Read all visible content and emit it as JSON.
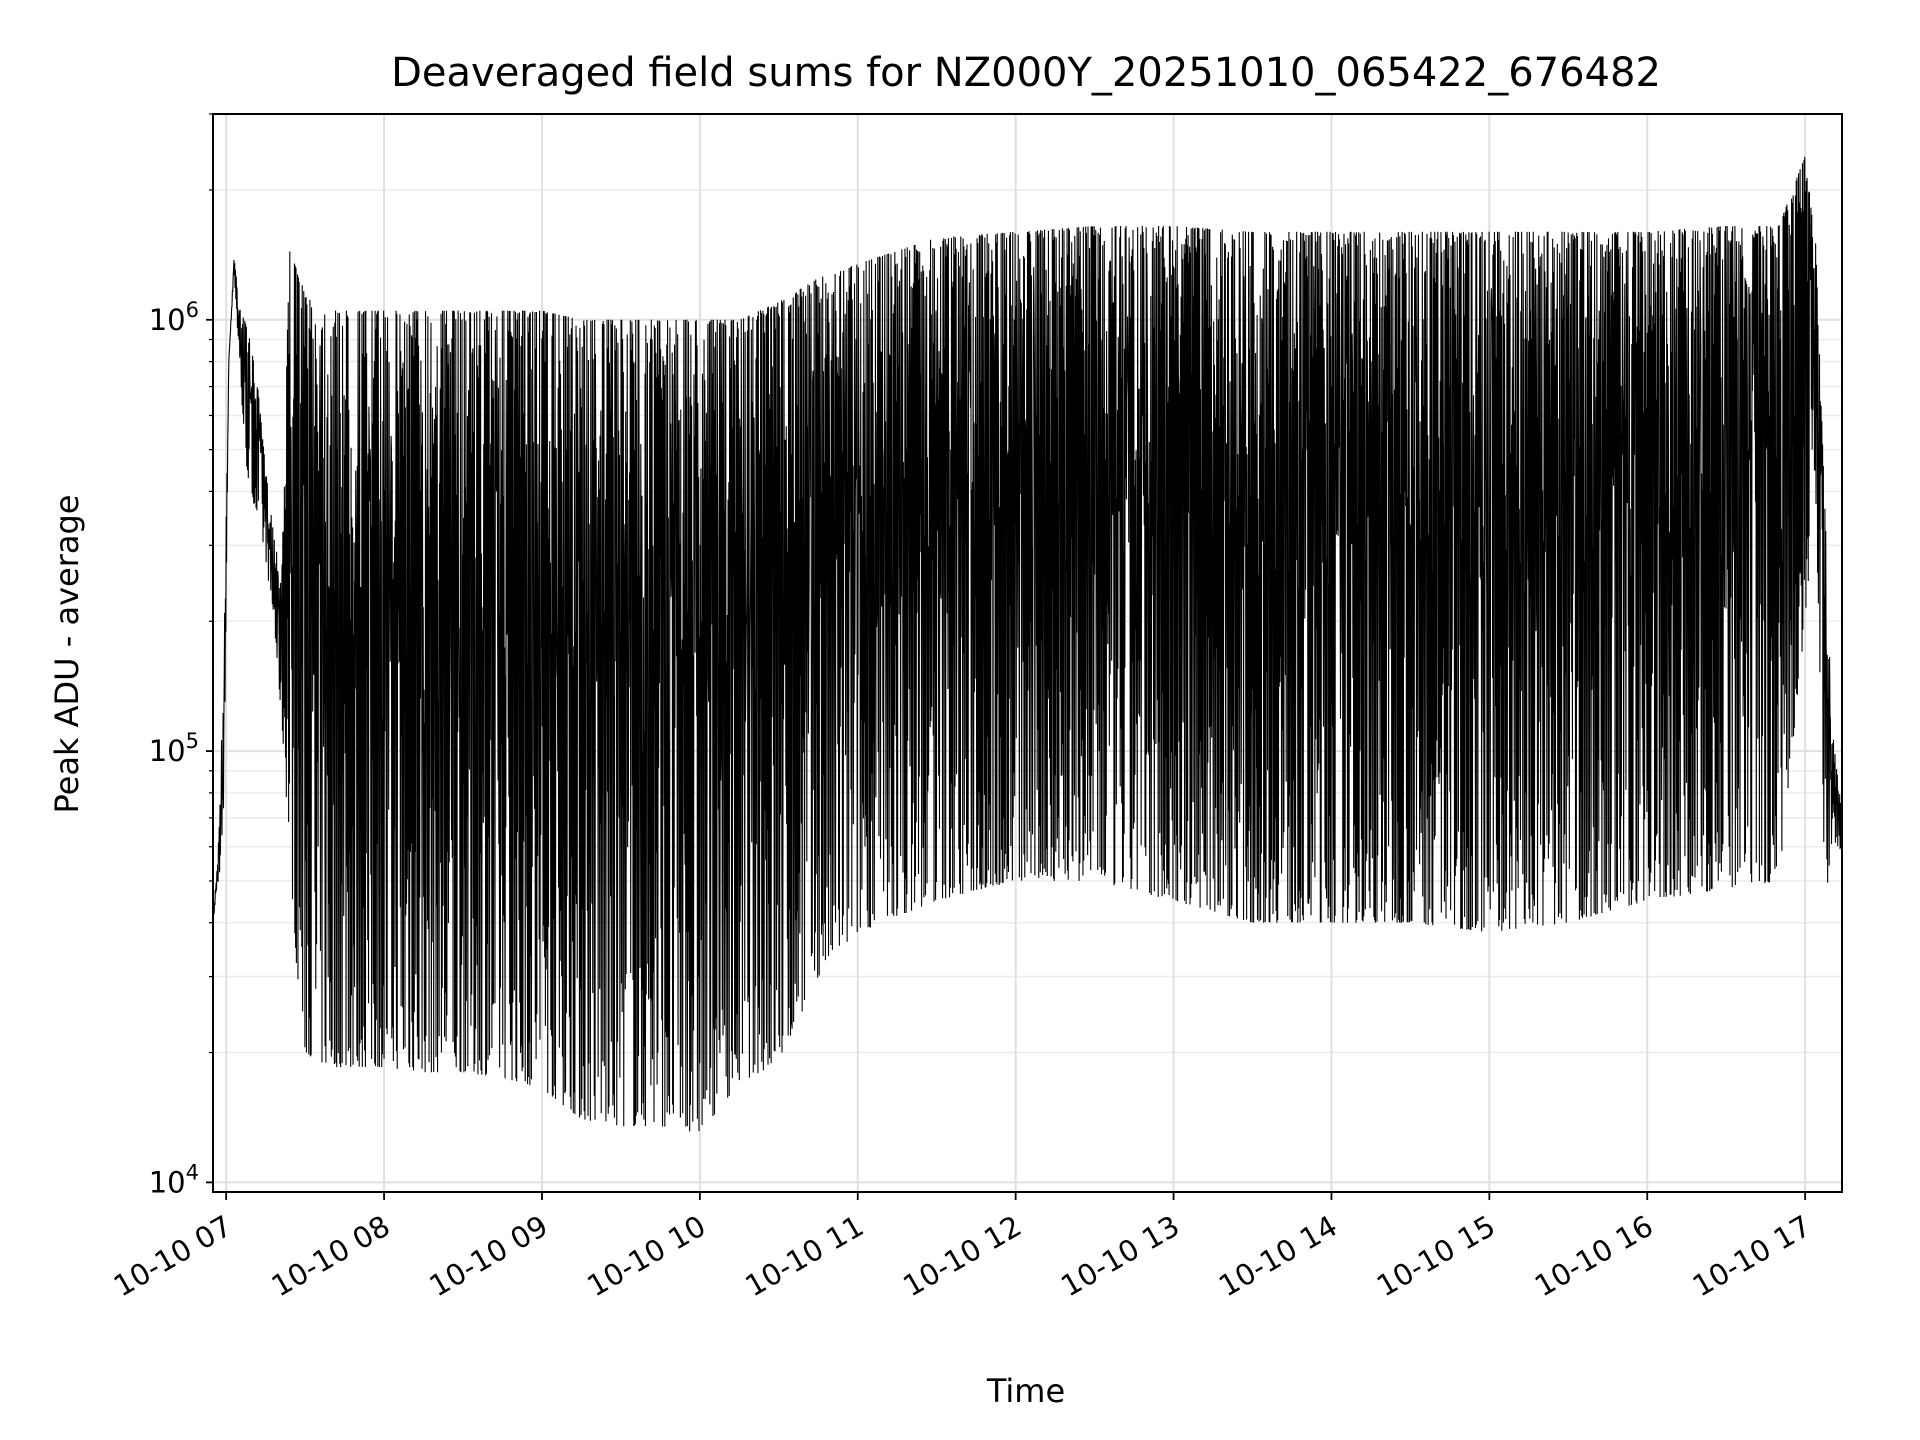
{
  "chart_data": {
    "type": "line",
    "title": "Deaveraged field sums for NZ000Y_20251010_065422_676482",
    "xlabel": "Time",
    "ylabel": "Peak ADU - average",
    "yscale": "log",
    "ylim": [
      9500,
      3000000
    ],
    "xlim": [
      "2025-10-10T06:55:00",
      "2025-10-10T17:14:00"
    ],
    "grid": true,
    "x_tick_labels": [
      "10-10 07",
      "10-10 08",
      "10-10 09",
      "10-10 10",
      "10-10 11",
      "10-10 12",
      "10-10 13",
      "10-10 14",
      "10-10 15",
      "10-10 16",
      "10-10 17"
    ],
    "x_tick_times": [
      "2025-10-10T07:00:00",
      "2025-10-10T08:00:00",
      "2025-10-10T09:00:00",
      "2025-10-10T10:00:00",
      "2025-10-10T11:00:00",
      "2025-10-10T12:00:00",
      "2025-10-10T13:00:00",
      "2025-10-10T14:00:00",
      "2025-10-10T15:00:00",
      "2025-10-10T16:00:00",
      "2025-10-10T17:00:00"
    ],
    "y_tick_values": [
      10000,
      100000,
      1000000
    ],
    "y_tick_labels": [
      {
        "base": "10",
        "exp": "4"
      },
      {
        "base": "10",
        "exp": "5"
      },
      {
        "base": "10",
        "exp": "6"
      }
    ],
    "line_color": "#000000",
    "series": [
      {
        "x": [
          "2025-10-10T06:55:00",
          "2025-10-10T06:57:00",
          "2025-10-10T06:59:00",
          "2025-10-10T07:01:00",
          "2025-10-10T07:03:00",
          "2025-10-10T07:05:00",
          "2025-10-10T07:07:00",
          "2025-10-10T07:09:00",
          "2025-10-10T07:12:00",
          "2025-10-10T07:15:00",
          "2025-10-10T07:18:00",
          "2025-10-10T07:21:00",
          "2025-10-10T07:24:00",
          "2025-10-10T07:27:00",
          "2025-10-10T07:30:00",
          "2025-10-10T07:35:00",
          "2025-10-10T07:40:00",
          "2025-10-10T07:50:00",
          "2025-10-10T08:00:00",
          "2025-10-10T08:15:00",
          "2025-10-10T08:30:00",
          "2025-10-10T08:45:00",
          "2025-10-10T09:00:00",
          "2025-10-10T09:15:00",
          "2025-10-10T09:30:00",
          "2025-10-10T09:45:00",
          "2025-10-10T10:00:00",
          "2025-10-10T10:15:00",
          "2025-10-10T10:30:00",
          "2025-10-10T10:45:00",
          "2025-10-10T11:00:00",
          "2025-10-10T11:30:00",
          "2025-10-10T12:00:00",
          "2025-10-10T12:30:00",
          "2025-10-10T13:00:00",
          "2025-10-10T13:30:00",
          "2025-10-10T14:00:00",
          "2025-10-10T14:30:00",
          "2025-10-10T15:00:00",
          "2025-10-10T15:30:00",
          "2025-10-10T16:00:00",
          "2025-10-10T16:30:00",
          "2025-10-10T16:50:00",
          "2025-10-10T17:00:00",
          "2025-10-10T17:04:00",
          "2025-10-10T17:08:00",
          "2025-10-10T17:10:00",
          "2025-10-10T17:12:00",
          "2025-10-10T17:14:00"
        ],
        "max": [
          40000,
          60000,
          150000,
          800000,
          1400000,
          1100000,
          1000000,
          900000,
          700000,
          450000,
          320000,
          250000,
          1450000,
          1300000,
          1150000,
          1050000,
          1050000,
          1050000,
          1050000,
          1050000,
          1050000,
          1050000,
          1050000,
          1000000,
          1000000,
          1000000,
          1000000,
          1000000,
          1100000,
          1250000,
          1350000,
          1550000,
          1600000,
          1650000,
          1650000,
          1600000,
          1600000,
          1600000,
          1600000,
          1600000,
          1600000,
          1650000,
          1650000,
          2400000,
          1500000,
          300000,
          120000,
          90000,
          75000
        ],
        "min": [
          40000,
          50000,
          60000,
          800000,
          1300000,
          800000,
          500000,
          400000,
          350000,
          280000,
          200000,
          120000,
          60000,
          30000,
          20000,
          19000,
          18500,
          18500,
          18500,
          18000,
          18000,
          17500,
          16500,
          14000,
          13500,
          13500,
          13000,
          17000,
          19000,
          30000,
          38000,
          45000,
          50000,
          50000,
          45000,
          40000,
          40000,
          40000,
          38000,
          40000,
          45000,
          48000,
          50000,
          200000,
          400000,
          35000,
          60000,
          58000,
          60000
        ]
      }
    ]
  }
}
